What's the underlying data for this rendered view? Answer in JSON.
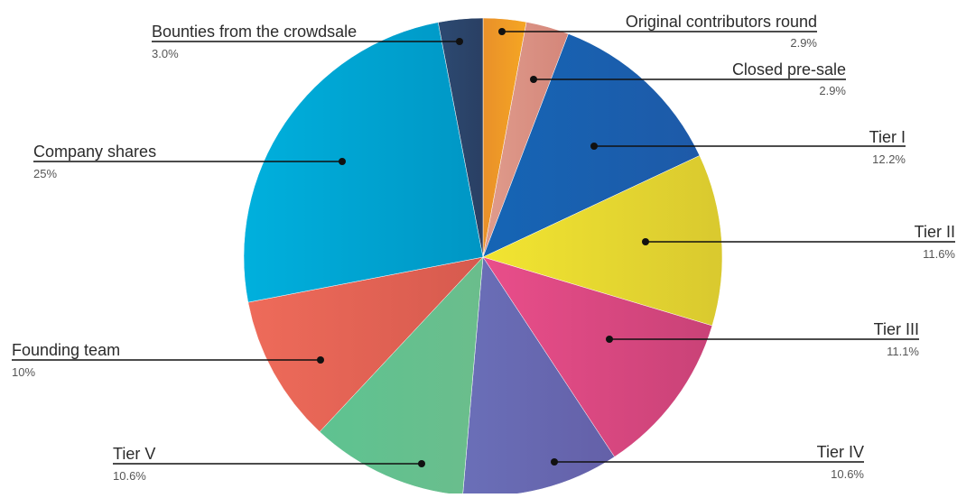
{
  "chart_data": {
    "type": "pie",
    "title": "",
    "slices": [
      {
        "label": "Original contributors round",
        "value": 2.9,
        "display": "2.9%",
        "color": "#e9902a",
        "color2": "#f5a623"
      },
      {
        "label": "Closed pre-sale",
        "value": 2.9,
        "display": "2.9%",
        "color": "#e09c8c",
        "color2": "#d4867a"
      },
      {
        "label": "Tier I",
        "value": 12.2,
        "display": "12.2%",
        "color": "#1565b5",
        "color2": "#1e5aa8"
      },
      {
        "label": "Tier II",
        "value": 11.6,
        "display": "11.6%",
        "color": "#f2e531",
        "color2": "#d9c92f"
      },
      {
        "label": "Tier III",
        "value": 11.1,
        "display": "11.1%",
        "color": "#e94e8a",
        "color2": "#c94277"
      },
      {
        "label": "Tier IV",
        "value": 10.6,
        "display": "10.6%",
        "color": "#6a6fb8",
        "color2": "#6460a8"
      },
      {
        "label": "Tier V",
        "value": 10.6,
        "display": "10.6%",
        "color": "#5ec391",
        "color2": "#6bbd8c"
      },
      {
        "label": "Founding team",
        "value": 10,
        "display": "10%",
        "color": "#ee6b5a",
        "color2": "#d65a4e"
      },
      {
        "label": "Company shares",
        "value": 25,
        "display": "25%",
        "color": "#00b0dd",
        "color2": "#0096c4"
      },
      {
        "label": "Bounties from the crowdsale",
        "value": 3.0,
        "display": "3.0%",
        "color": "#2c4a72",
        "color2": "#2a3f63"
      }
    ]
  }
}
